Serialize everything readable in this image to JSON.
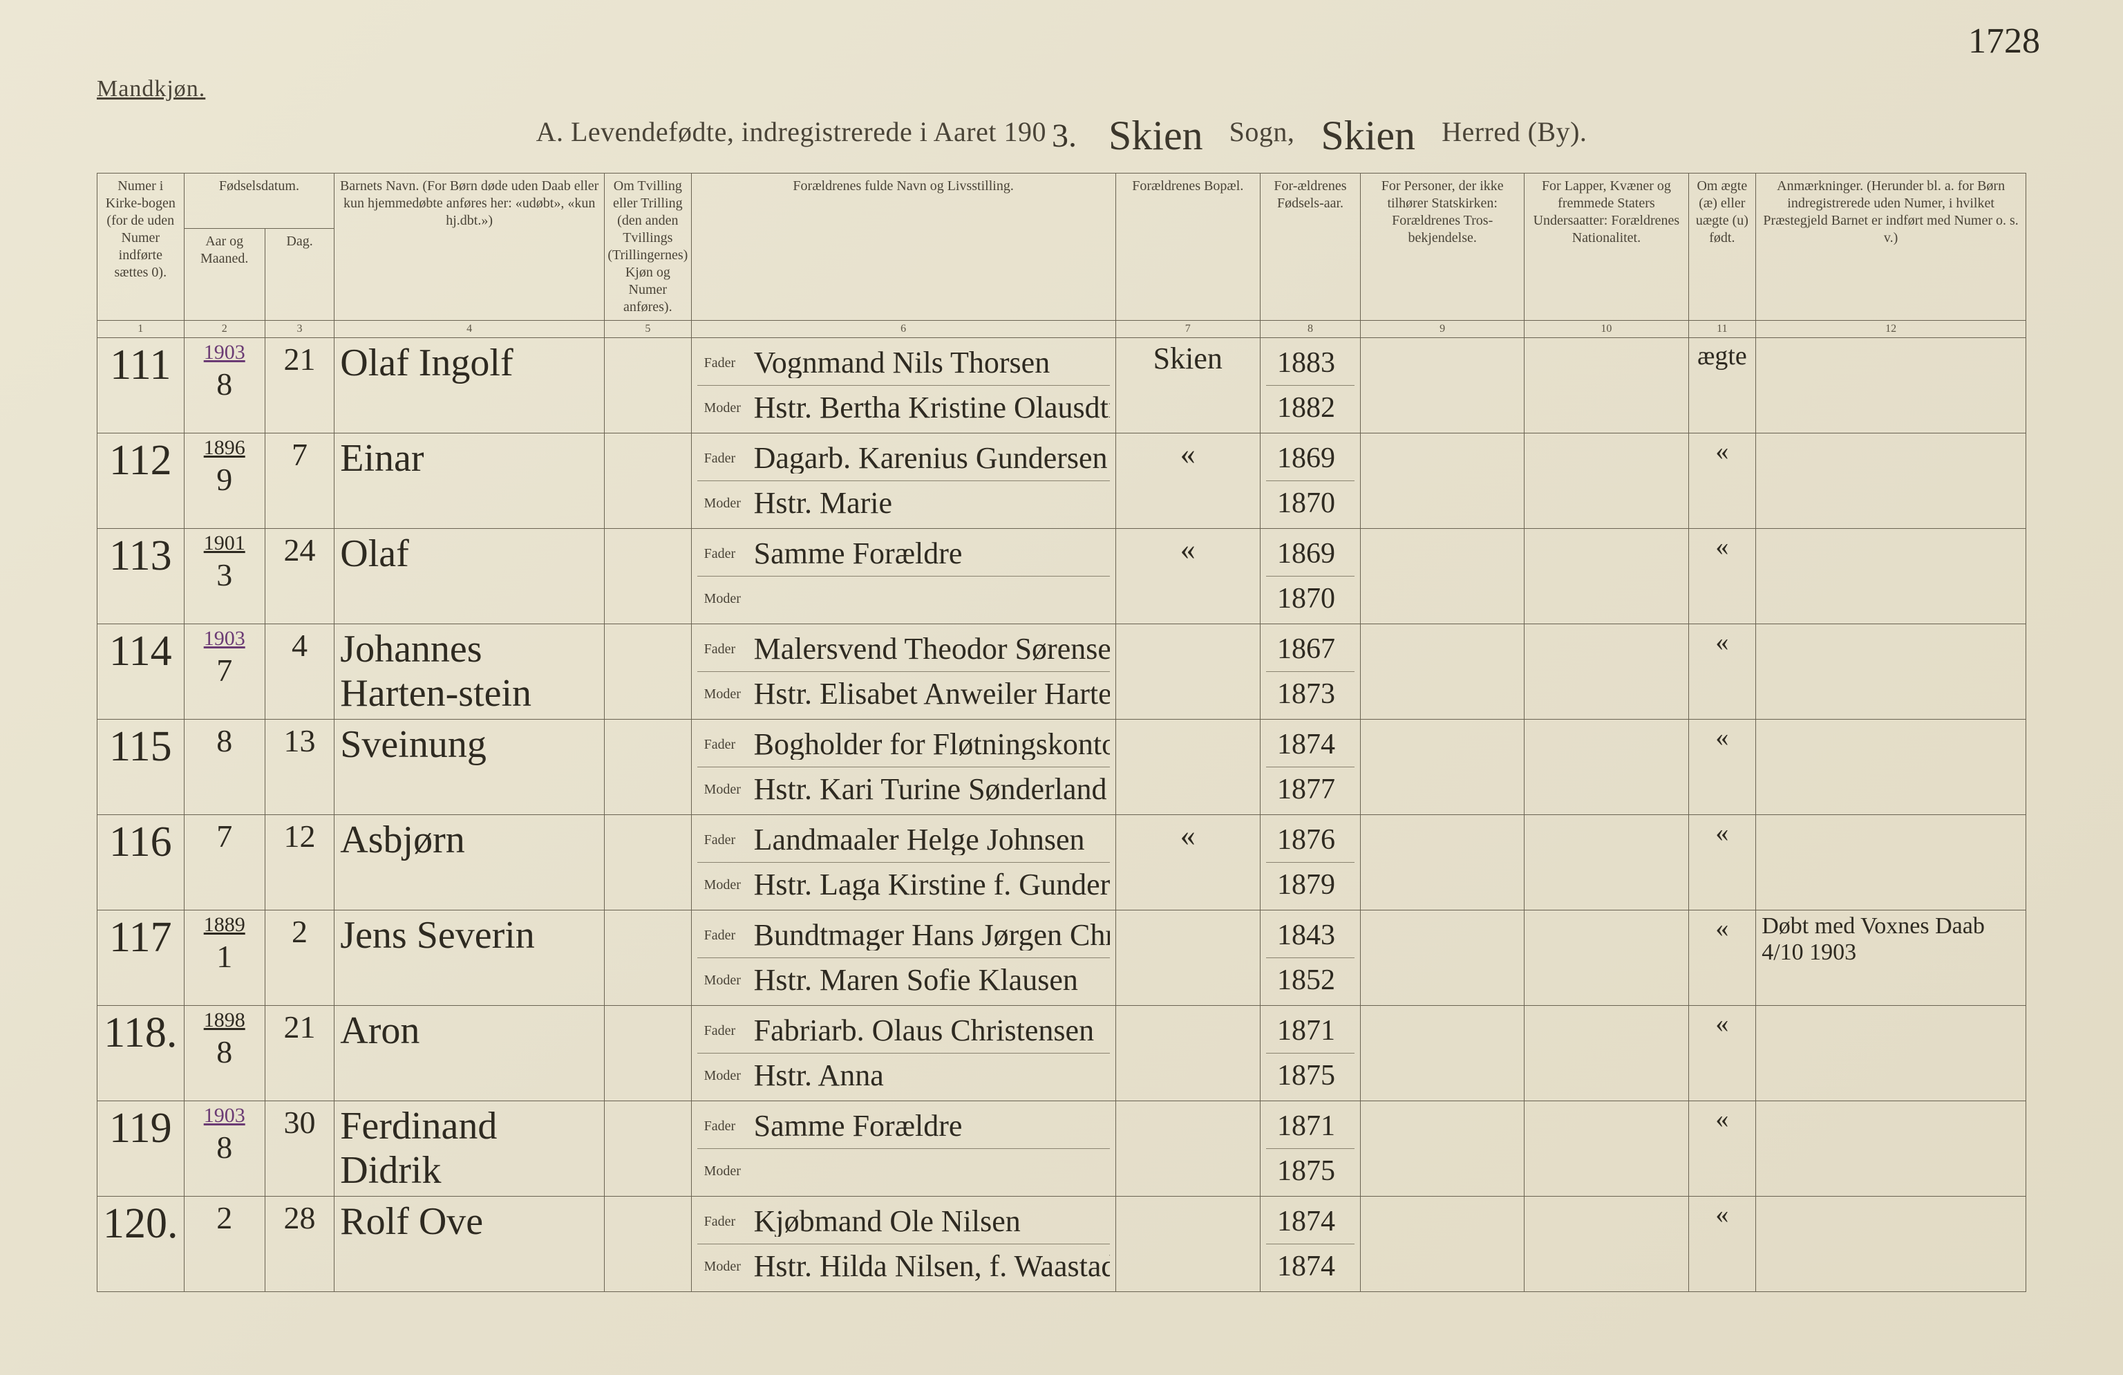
{
  "page_number_handwritten": "1728",
  "top_left_label": "Mandkjøn.",
  "header": {
    "prefix": "A.  Levendefødte, indregistrerede i Aaret 190",
    "year_suffix_hand": "3.",
    "sogn_hand": "Skien",
    "sogn_label": "Sogn,",
    "herred_hand": "Skien",
    "herred_label": "Herred (By)."
  },
  "columns": {
    "c1": "Numer i Kirke-bogen (for de uden Numer indførte sættes 0).",
    "c2_group": "Fødselsdatum.",
    "c2a": "Aar og Maaned.",
    "c2b": "Dag.",
    "c4": "Barnets Navn.\n(For Børn døde uden Daab eller kun hjemmedøbte anføres her: «udøbt», «kun hj.dbt.»)",
    "c5": "Om Tvilling eller Trilling (den anden Tvillings (Trillingernes) Kjøn og Numer anføres).",
    "c6": "Forældrenes fulde Navn og Livsstilling.",
    "c7": "Forældrenes Bopæl.",
    "c8": "For-ældrenes Fødsels-aar.",
    "c9": "For Personer, der ikke tilhører Statskirken: Forældrenes Tros-bekjendelse.",
    "c10": "For Lapper, Kvæner og fremmede Staters Undersaatter: Forældrenes Nationalitet.",
    "c11": "Om ægte (æ) eller uægte (u) født.",
    "c12": "Anmærkninger.\n(Herunder bl. a. for Børn indregistrerede uden Numer, i hvilket Præstegjeld Barnet er indført med Numer o. s. v.)",
    "fader": "Fader",
    "moder": "Moder",
    "colnums": [
      "1",
      "2",
      "3",
      "4",
      "5",
      "6",
      "7",
      "8",
      "9",
      "10",
      "11",
      "12"
    ]
  },
  "rows": [
    {
      "num": "111",
      "year": "1903",
      "year_purple": true,
      "month": "8",
      "day": "21",
      "child": "Olaf Ingolf",
      "father": "Vognmand Nils Thorsen",
      "mother": "Hstr. Bertha Kristine Olausdtr",
      "residence": "Skien",
      "father_year": "1883",
      "mother_year": "1882",
      "legit": "ægte",
      "notes": ""
    },
    {
      "num": "112",
      "year": "1896",
      "year_purple": false,
      "month": "9",
      "day": "7",
      "child": "Einar",
      "father": "Dagarb. Karenius Gundersen",
      "mother": "Hstr. Marie",
      "residence": "«",
      "father_year": "1869",
      "mother_year": "1870",
      "legit": "«",
      "notes": ""
    },
    {
      "num": "113",
      "year": "1901",
      "year_purple": false,
      "month": "3",
      "day": "24",
      "child": "Olaf",
      "father": "Samme Forældre",
      "mother": "",
      "residence": "«",
      "father_year": "1869",
      "mother_year": "1870",
      "legit": "«",
      "notes": ""
    },
    {
      "num": "114",
      "year": "1903",
      "year_purple": true,
      "month": "7",
      "day": "4",
      "child": "Johannes Harten-stein",
      "father": "Malersvend Theodor Sørensen",
      "mother": "Hstr. Elisabet Anweiler Hartenstein",
      "residence": "",
      "father_year": "1867",
      "mother_year": "1873",
      "legit": "«",
      "notes": ""
    },
    {
      "num": "115",
      "year": "",
      "month": "8",
      "day": "13",
      "child": "Sveinung",
      "father": "Bogholder for Fløtningskontor Aanund Hegna",
      "mother": "Hstr. Kari Turine Sønderland",
      "residence": "",
      "father_year": "1874",
      "mother_year": "1877",
      "legit": "«",
      "notes": ""
    },
    {
      "num": "116",
      "year": "",
      "month": "7",
      "day": "12",
      "child": "Asbjørn",
      "father": "Landmaaler Helge Johnsen",
      "mother": "Hstr. Laga Kirstine f. Gundersen",
      "residence": "«",
      "father_year": "1876",
      "mother_year": "1879",
      "legit": "«",
      "notes": ""
    },
    {
      "num": "117",
      "year": "1889",
      "year_purple": false,
      "month": "1",
      "day": "2",
      "child": "Jens Severin",
      "father": "Bundtmager Hans Jørgen Christensen",
      "mother": "Hstr. Maren Sofie Klausen",
      "residence": "",
      "father_year": "1843",
      "mother_year": "1852",
      "legit": "«",
      "notes": "Døbt med Voxnes Daab 4/10 1903"
    },
    {
      "num": "118.",
      "year": "1898",
      "year_purple": false,
      "month": "8",
      "day": "21",
      "child": "Aron",
      "father": "Fabriarb. Olaus Christensen",
      "mother": "Hstr. Anna",
      "residence": "",
      "father_year": "1871",
      "mother_year": "1875",
      "legit": "«",
      "notes": ""
    },
    {
      "num": "119",
      "year": "1903",
      "year_purple": true,
      "month": "8",
      "day": "30",
      "child": "Ferdinand Didrik",
      "father": "Samme Forældre",
      "mother": "",
      "residence": "",
      "father_year": "1871",
      "mother_year": "1875",
      "legit": "«",
      "notes": ""
    },
    {
      "num": "120.",
      "year": "",
      "month": "2",
      "day": "28",
      "child": "Rolf Ove",
      "father": "Kjøbmand Ole Nilsen",
      "mother": "Hstr. Hilda Nilsen, f. Waastad",
      "residence": "",
      "father_year": "1874",
      "mother_year": "1874",
      "legit": "«",
      "notes": ""
    }
  ]
}
